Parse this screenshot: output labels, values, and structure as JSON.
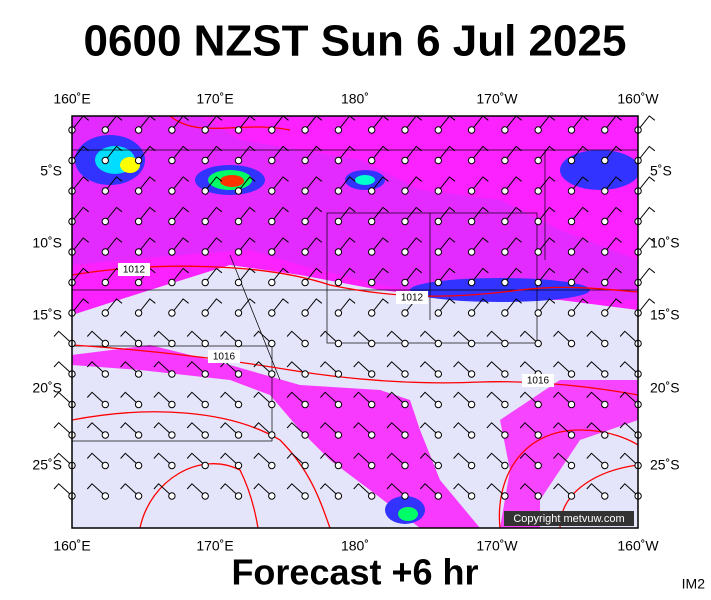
{
  "header": {
    "title": "0600 NZST Sun 6 Jul 2025"
  },
  "map": {
    "lon_labels_top": [
      "160˚E",
      "170˚E",
      "180˚",
      "170˚W",
      "160˚W"
    ],
    "lon_labels_bottom": [
      "160˚E",
      "170˚E",
      "180˚",
      "170˚W",
      "160˚W"
    ],
    "lat_labels_left": [
      "5˚S",
      "10˚S",
      "15˚S",
      "20˚S",
      "25˚S"
    ],
    "lat_labels_right": [
      "5˚S",
      "10˚S",
      "15˚S",
      "20˚S",
      "25˚S"
    ],
    "isobar_labels": [
      "1012",
      "1012",
      "1016",
      "1016"
    ],
    "copyright": "Copyright metvuw.com"
  },
  "footer": {
    "forecast": "Forecast +6 hr",
    "image_id": "IM2"
  }
}
